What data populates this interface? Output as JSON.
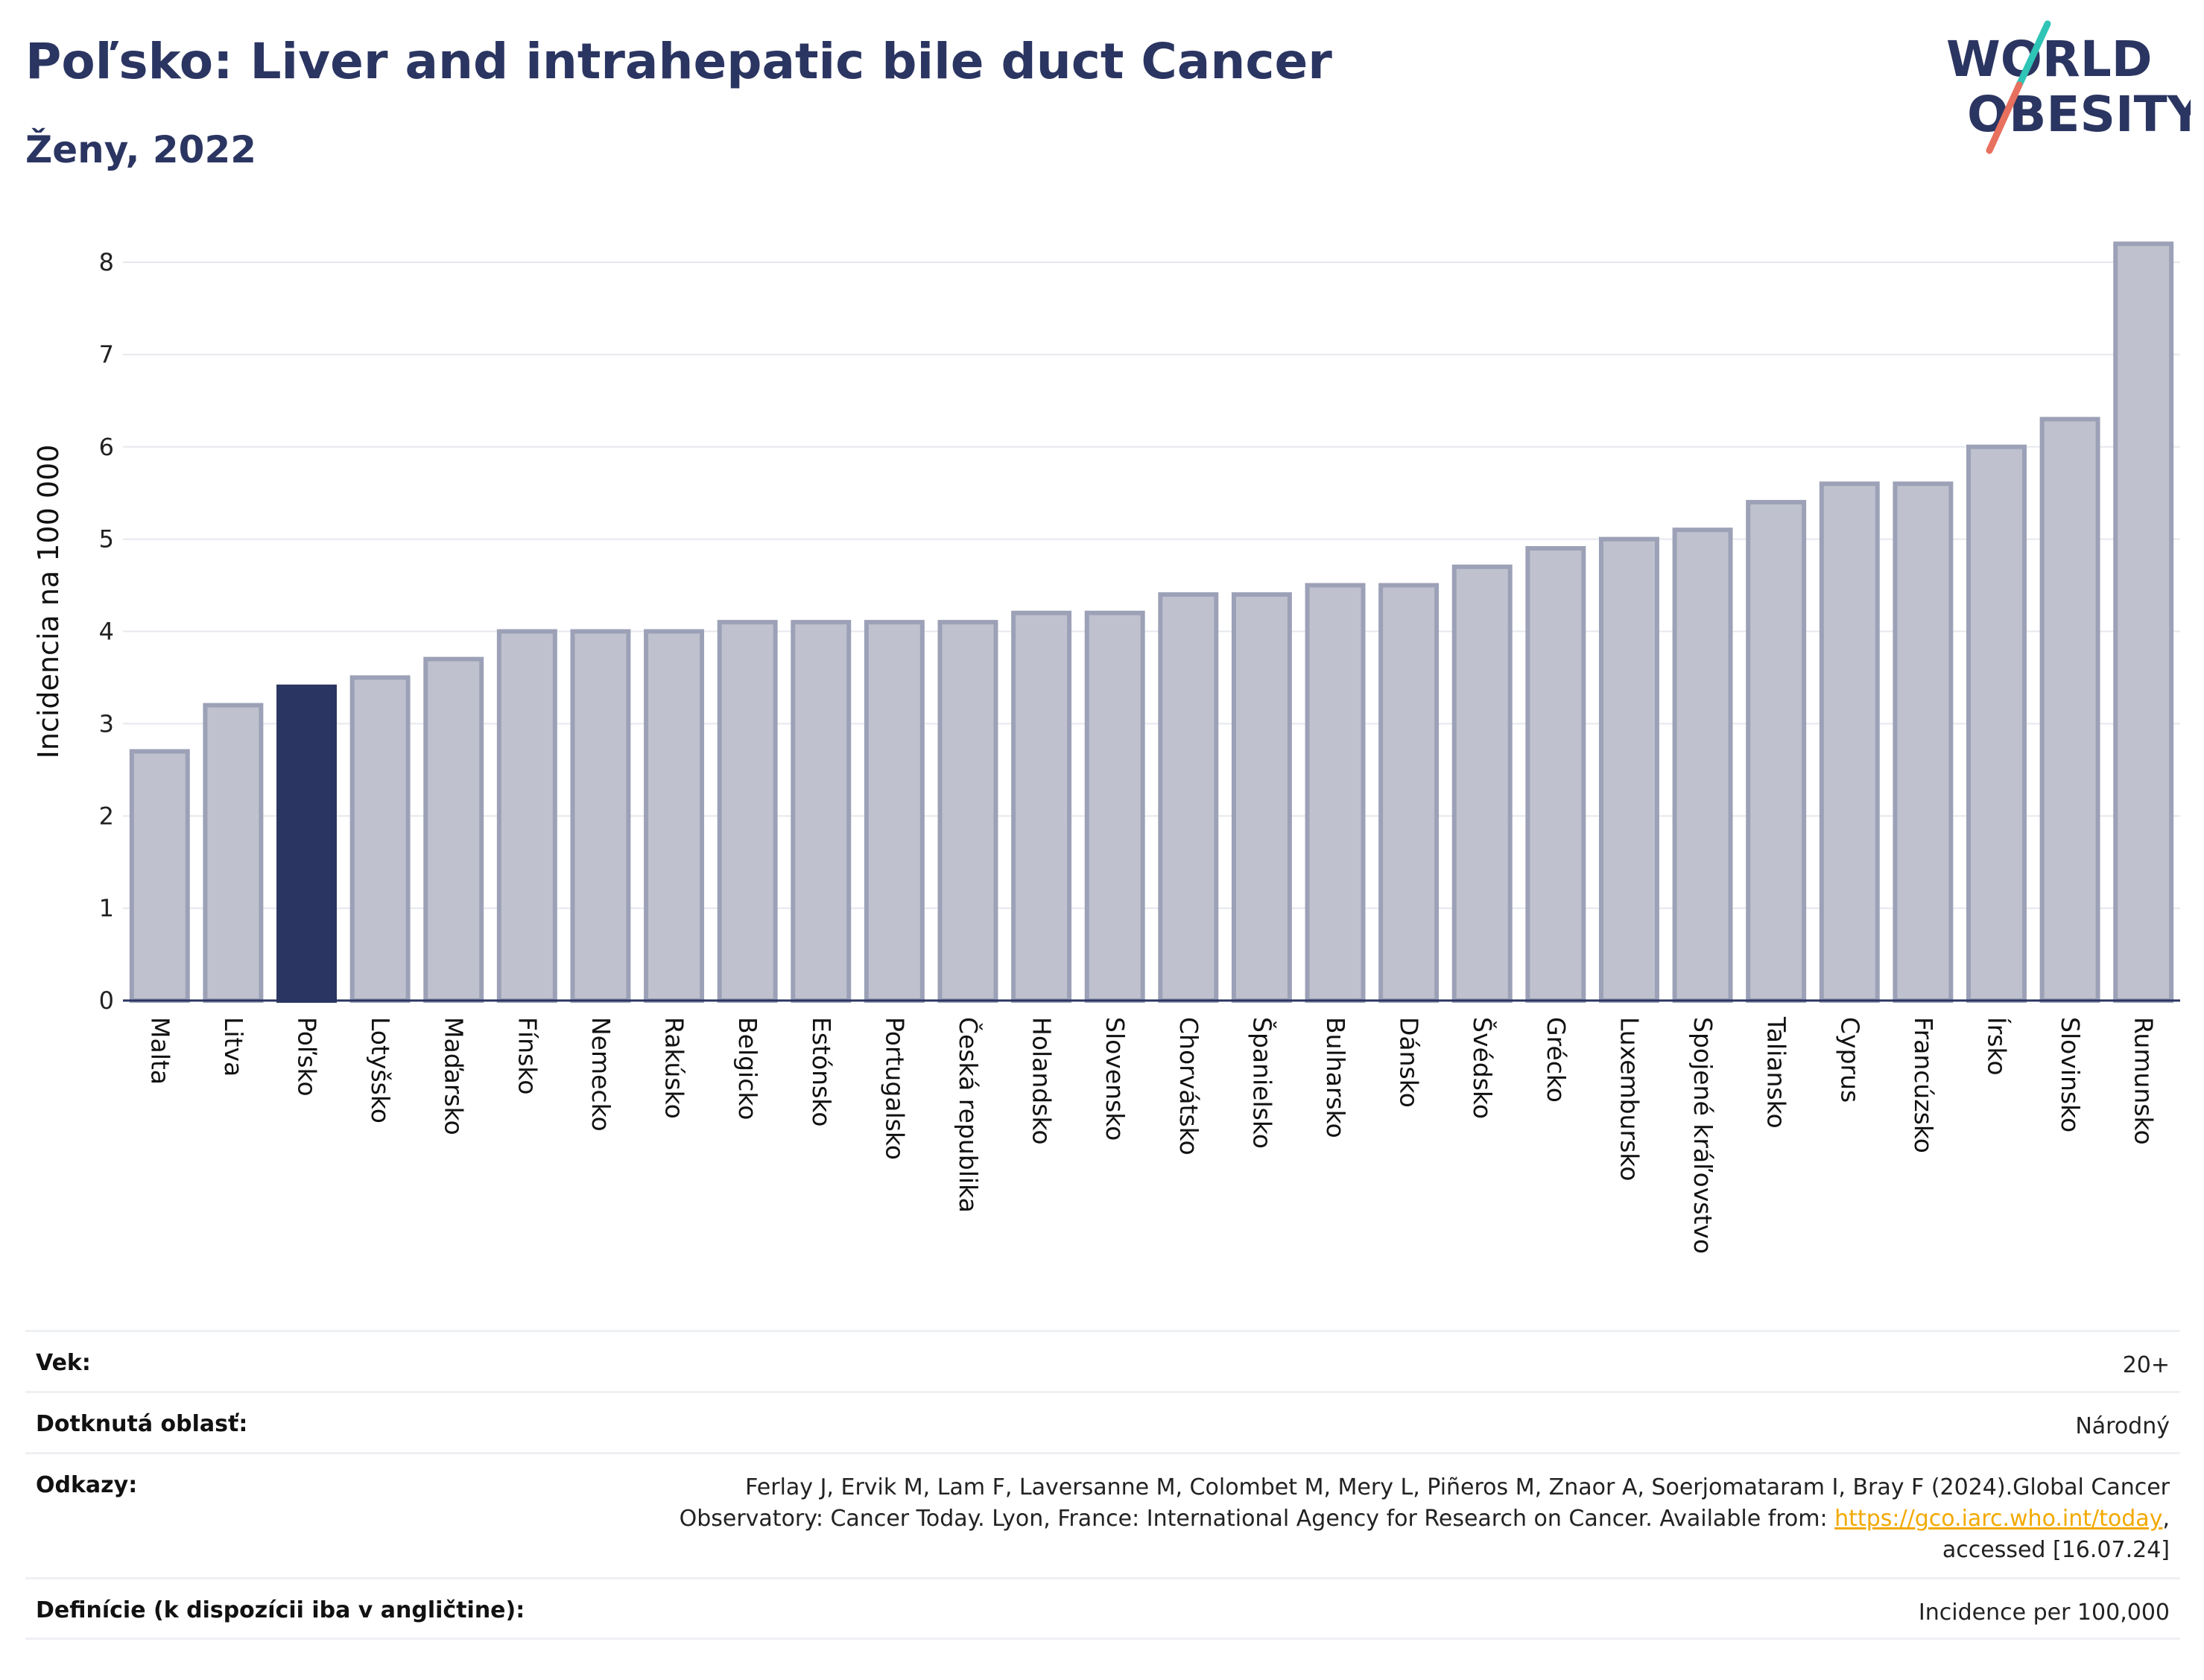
{
  "header": {
    "title": "Poľsko: Liver and intrahepatic bile duct Cancer",
    "subtitle": "Ženy, 2022"
  },
  "logo": {
    "line1": "WORLD",
    "line2": "OBESITY",
    "colors": {
      "text": "#2b3561",
      "slash_teal": "#2ec4b6",
      "slash_coral": "#e8705f"
    }
  },
  "chart_data": {
    "type": "bar",
    "ylabel": "Incidencia na 100 000",
    "xlabel": "",
    "ylim": [
      0,
      8.4
    ],
    "yticks": [
      0,
      1,
      2,
      3,
      4,
      5,
      6,
      7,
      8
    ],
    "grid": true,
    "highlight": "Poľsko",
    "colors": {
      "bar": "#bfc2ce",
      "bar_border": "#9ca1b7",
      "highlight": "#2b3561"
    },
    "categories": [
      "Malta",
      "Litva",
      "Poľsko",
      "Lotyšsko",
      "Maďarsko",
      "Fínsko",
      "Nemecko",
      "Rakúsko",
      "Belgicko",
      "Estónsko",
      "Portugalsko",
      "Česká republika",
      "Holandsko",
      "Slovensko",
      "Chorvátsko",
      "Španielsko",
      "Bulharsko",
      "Dánsko",
      "Švédsko",
      "Grécko",
      "Luxembursko",
      "Spojené kráľovstvo",
      "Taliansko",
      "Cyprus",
      "Francúzsko",
      "Írsko",
      "Slovinsko",
      "Rumunsko"
    ],
    "values": [
      2.7,
      3.2,
      3.4,
      3.5,
      3.7,
      4.0,
      4.0,
      4.0,
      4.1,
      4.1,
      4.1,
      4.1,
      4.2,
      4.2,
      4.4,
      4.4,
      4.5,
      4.5,
      4.7,
      4.9,
      5.0,
      5.1,
      5.4,
      5.6,
      5.6,
      6.0,
      6.3,
      8.2
    ]
  },
  "meta": {
    "age_key": "Vek:",
    "age_val": "20+",
    "area_key": "Dotknutá oblasť:",
    "area_val": "Národný",
    "refs_key": "Odkazy:",
    "refs_line1": "Ferlay J, Ervik M, Lam F, Laversanne M, Colombet M, Mery L, Piñeros M, Znaor A, Soerjomataram I, Bray F (2024).Global Cancer",
    "refs_line2_pre": "Observatory: Cancer Today. Lyon, France: International Agency for Research on Cancer. Available from: ",
    "refs_link": "https://gco.iarc.who.int/today",
    "refs_line2_post": ",",
    "refs_line3": "accessed [16.07.24]",
    "def_key": "Definície (k dispozícii iba v angličtine):",
    "def_val": "Incidence per 100,000"
  }
}
